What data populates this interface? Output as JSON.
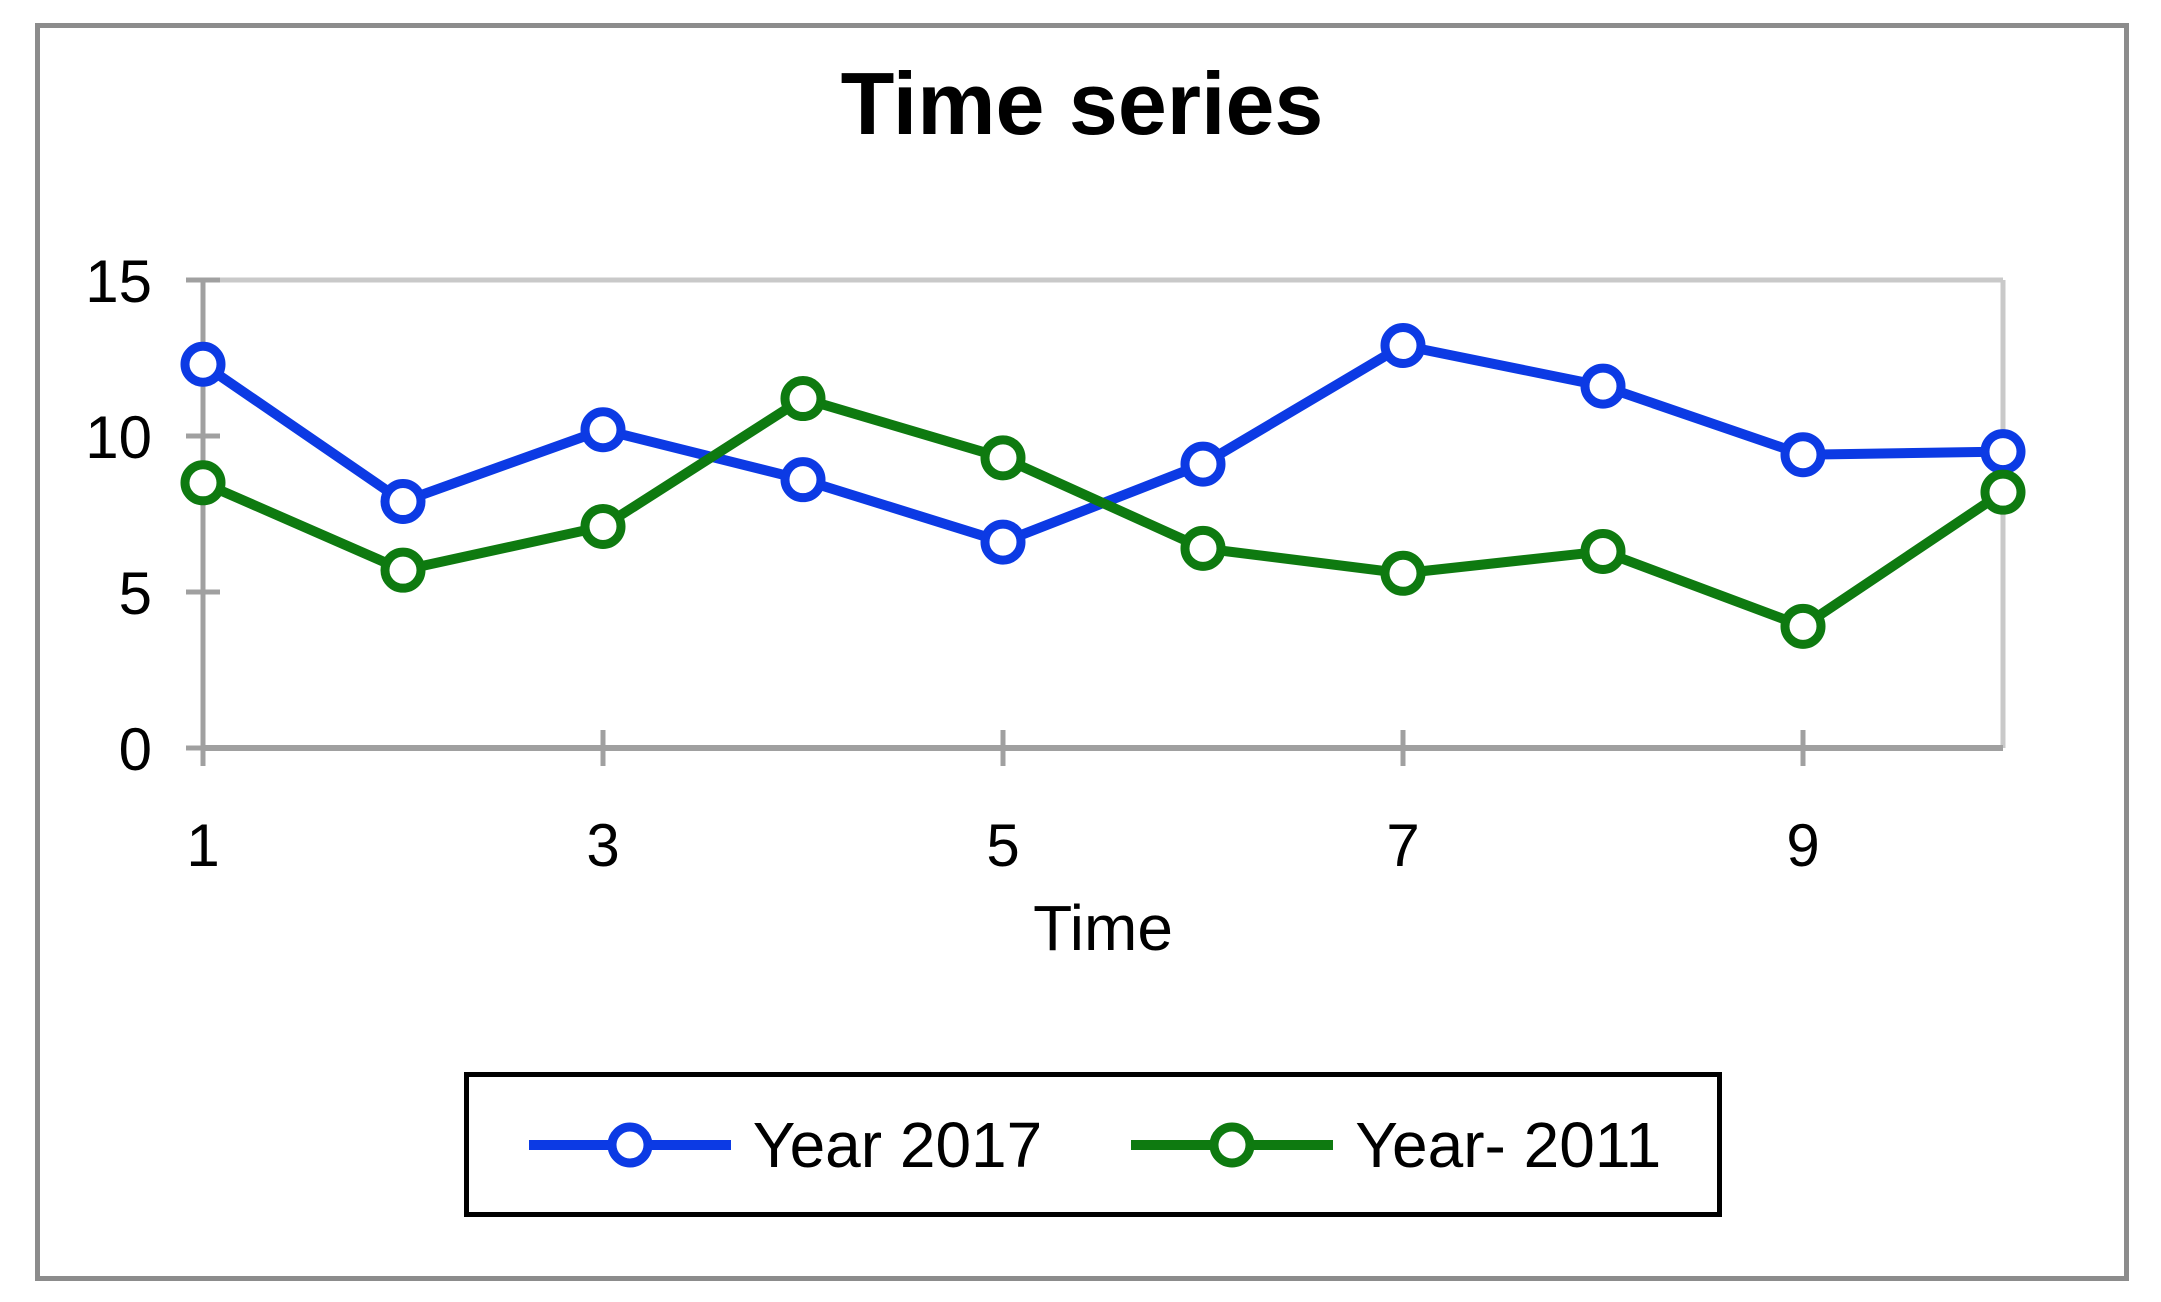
{
  "chart_data": {
    "type": "line",
    "title": "Time series",
    "xlabel": "Time",
    "ylabel": "",
    "x": [
      1,
      2,
      3,
      4,
      5,
      6,
      7,
      8,
      9,
      10
    ],
    "xlim": [
      1,
      10
    ],
    "ylim": [
      0,
      15
    ],
    "x_ticks": [
      1,
      3,
      5,
      7,
      9
    ],
    "y_ticks": [
      0,
      5,
      10,
      15
    ],
    "grid": false,
    "legend_position": "bottom",
    "marker": "open-circle",
    "series": [
      {
        "name": "Year 2017",
        "color": "#0c3ae4",
        "values": [
          12.3,
          7.9,
          10.2,
          8.6,
          6.6,
          9.1,
          12.9,
          11.6,
          9.4,
          9.5
        ]
      },
      {
        "name": "Year- 2011",
        "color": "#0e7a10",
        "values": [
          8.5,
          5.7,
          7.1,
          11.2,
          9.3,
          6.4,
          5.6,
          6.3,
          3.9,
          8.2
        ]
      }
    ],
    "colors": {
      "axis": "#a0a0a0",
      "plot_border": "#c9c9c9",
      "frame_border": "#8c8c8c",
      "legend_border": "#000000",
      "text": "#000000",
      "marker_fill": "#ffffff"
    }
  }
}
